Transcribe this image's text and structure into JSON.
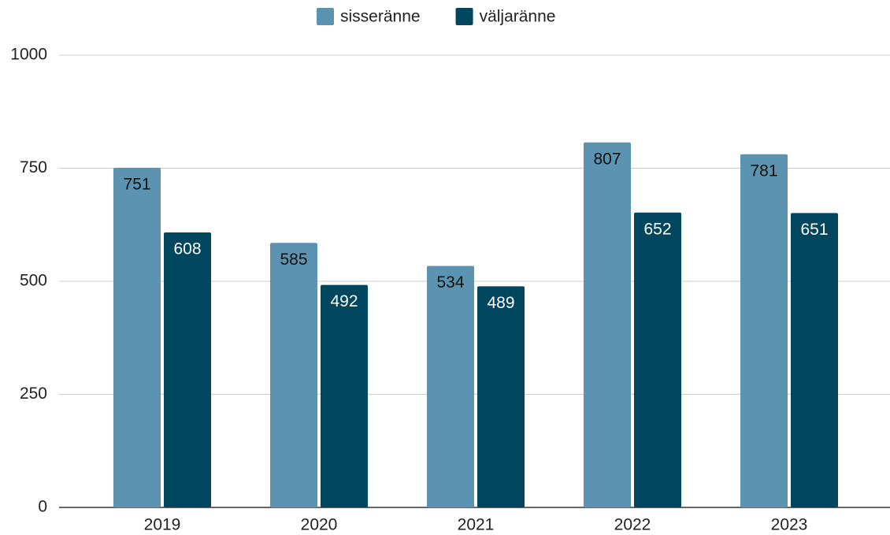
{
  "chart_data": {
    "type": "bar",
    "categories": [
      "2019",
      "2020",
      "2021",
      "2022",
      "2023"
    ],
    "series": [
      {
        "name": "sisseränne",
        "color": "#5b93b1",
        "label_color": "#111111",
        "values": [
          751,
          585,
          534,
          807,
          781
        ]
      },
      {
        "name": "väljaränne",
        "color": "#00465f",
        "label_color": "#ffffff",
        "values": [
          608,
          492,
          489,
          652,
          651
        ]
      }
    ],
    "ylim": [
      0,
      1000
    ],
    "yticks": [
      0,
      250,
      500,
      750,
      1000
    ],
    "grid": true,
    "legend": "top"
  }
}
